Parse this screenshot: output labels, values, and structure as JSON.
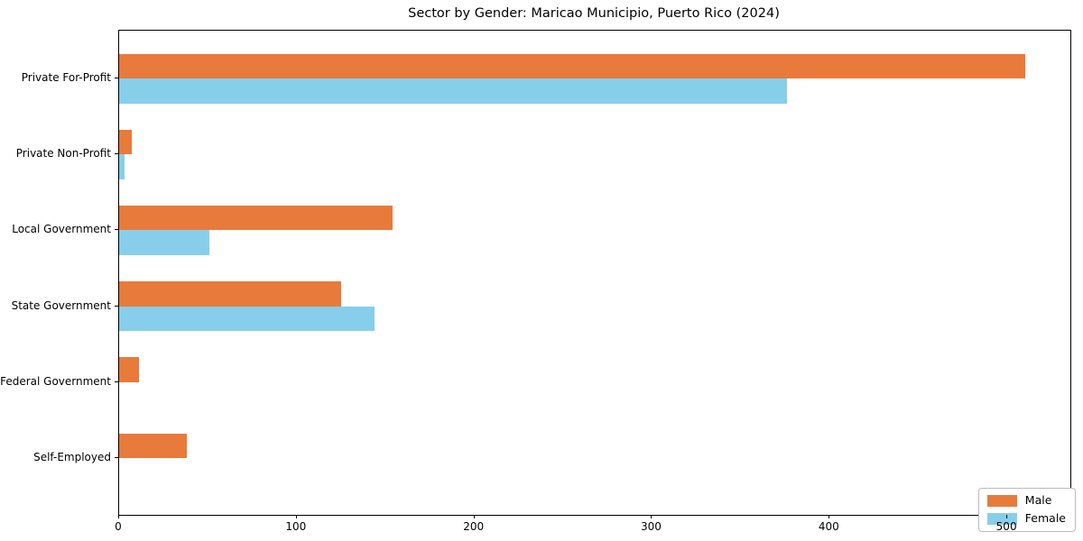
{
  "chart_data": {
    "type": "bar",
    "orientation": "horizontal",
    "title": "Sector by Gender: Maricao Municipio, Puerto Rico (2024)",
    "categories": [
      "Private For-Profit",
      "Private Non-Profit",
      "Local Government",
      "State Government",
      "Federal Government",
      "Self-Employed"
    ],
    "series": [
      {
        "name": "Male",
        "color": "#e87a3c",
        "values": [
          510,
          7,
          154,
          125,
          11,
          38
        ]
      },
      {
        "name": "Female",
        "color": "#87ceeb",
        "values": [
          376,
          3,
          51,
          144,
          0,
          0
        ]
      }
    ],
    "xlabel": "",
    "ylabel": "",
    "xlim": [
      0,
      535.5
    ],
    "xticks": [
      0,
      100,
      200,
      300,
      400,
      500
    ],
    "grid": false,
    "legend_position": "lower right"
  }
}
